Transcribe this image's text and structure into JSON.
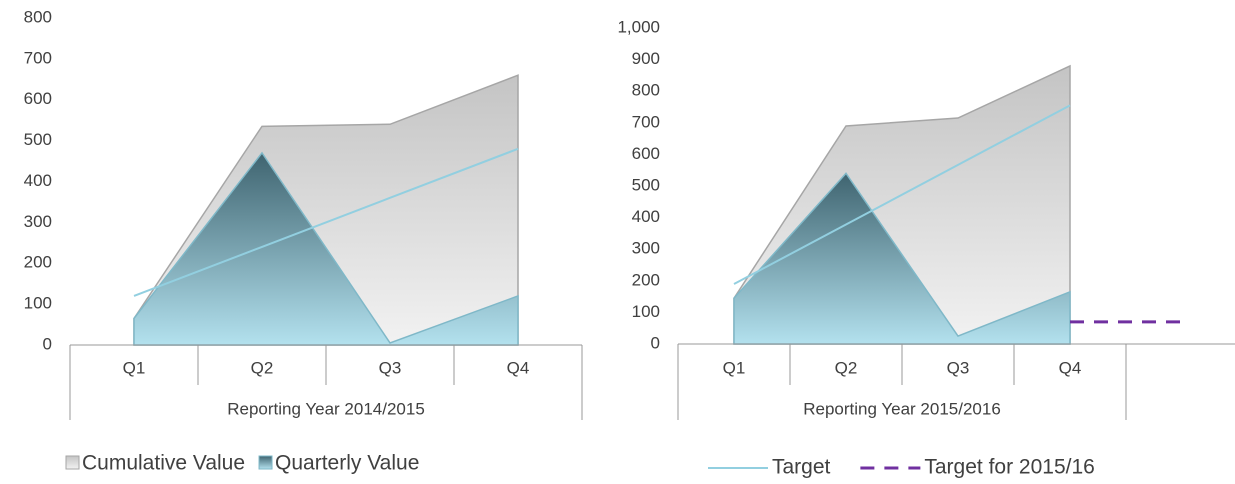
{
  "chart_data": [
    {
      "type": "area",
      "categories": [
        "Q1",
        "Q2",
        "Q3",
        "Q4"
      ],
      "group_label": "Reporting Year 2014/2015",
      "ylim": [
        0,
        800
      ],
      "yticks": [
        0,
        100,
        200,
        300,
        400,
        500,
        600,
        700,
        800
      ],
      "series": [
        {
          "name": "Cumulative Value",
          "type": "area",
          "color": "#a6a6a6",
          "gradient": [
            "#c4c4c4",
            "#f2f2f2"
          ],
          "values": [
            65,
            535,
            540,
            660
          ],
          "in_legend": true
        },
        {
          "name": "Quarterly Value",
          "type": "area",
          "color": "#7fb8c8",
          "gradient": [
            "#3f6470",
            "#b3e1ee"
          ],
          "values": [
            65,
            470,
            5,
            120
          ],
          "in_legend": true
        },
        {
          "name": "Target",
          "type": "line",
          "color": "#92cfe0",
          "values": [
            120,
            240,
            360,
            480
          ],
          "in_legend": false
        }
      ]
    },
    {
      "type": "area",
      "categories": [
        "Q1",
        "Q2",
        "Q3",
        "Q4",
        null
      ],
      "group_label": "Reporting Year 2015/2016",
      "ylim": [
        0,
        1000
      ],
      "yticks": [
        0,
        100,
        200,
        300,
        400,
        500,
        600,
        700,
        800,
        900,
        {
          "value": 1000,
          "label": "1,000"
        }
      ],
      "series": [
        {
          "name": "Cumulative Value",
          "type": "area",
          "color": "#a6a6a6",
          "gradient": [
            "#c4c4c4",
            "#f2f2f2"
          ],
          "values": [
            145,
            690,
            715,
            880,
            null
          ],
          "in_legend": false
        },
        {
          "name": "Quarterly Value",
          "type": "area",
          "color": "#7fb8c8",
          "gradient": [
            "#3f6470",
            "#b3e1ee"
          ],
          "values": [
            145,
            540,
            25,
            165,
            null
          ],
          "in_legend": false
        },
        {
          "name": "Target",
          "type": "line",
          "color": "#92cfe0",
          "values": [
            190,
            378,
            567,
            755,
            null
          ],
          "in_legend": true
        },
        {
          "name": "Target for 2015/16",
          "type": "line",
          "dashed": true,
          "color": "#7030a0",
          "values": [
            null,
            null,
            null,
            70,
            70
          ],
          "in_legend": true
        }
      ]
    }
  ]
}
